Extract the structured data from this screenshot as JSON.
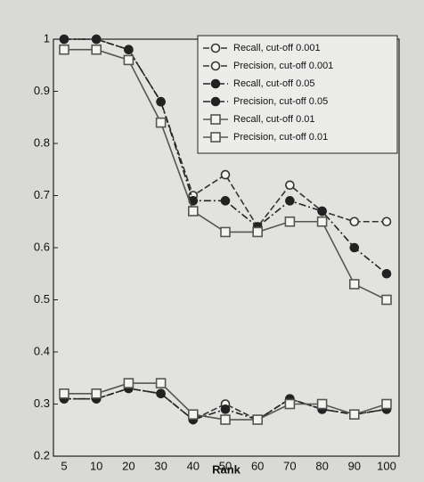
{
  "chart_data": {
    "type": "line",
    "x_label": "Rank",
    "categories": [
      "5",
      "10",
      "20",
      "30",
      "40",
      "50",
      "60",
      "70",
      "80",
      "90",
      "100"
    ],
    "ylim": [
      0.2,
      1.0
    ],
    "yticks": [
      0.2,
      0.3,
      0.4,
      0.5,
      0.6,
      0.7,
      0.8,
      0.9,
      1
    ],
    "legend": "upper right",
    "series": [
      {
        "name": "Recall, cut-off 0.001",
        "color": "#333333",
        "marker": "circle-open",
        "dash": "7,3",
        "values": [
          1.0,
          1.0,
          0.98,
          0.88,
          0.7,
          0.74,
          0.64,
          0.72,
          0.67,
          0.65,
          0.65
        ]
      },
      {
        "name": "Precision, cut-off 0.001",
        "color": "#333333",
        "marker": "circle-open",
        "dash": "7,3",
        "values": [
          0.31,
          0.31,
          0.33,
          0.32,
          0.27,
          0.3,
          0.27,
          0.31,
          0.29,
          0.28,
          0.29
        ]
      },
      {
        "name": "Recall, cut-off 0.05",
        "color": "#222222",
        "marker": "circle-filled",
        "dash": "8,3,2,3",
        "values": [
          1.0,
          1.0,
          0.98,
          0.88,
          0.69,
          0.69,
          0.64,
          0.69,
          0.67,
          0.6,
          0.55
        ]
      },
      {
        "name": "Precision, cut-off 0.05",
        "color": "#222222",
        "marker": "circle-filled",
        "dash": "8,3,2,3",
        "values": [
          0.31,
          0.31,
          0.33,
          0.32,
          0.27,
          0.29,
          0.27,
          0.31,
          0.29,
          0.28,
          0.29
        ]
      },
      {
        "name": "Recall, cut-off 0.01",
        "color": "#555555",
        "marker": "square-open",
        "dash": "",
        "values": [
          0.98,
          0.98,
          0.96,
          0.84,
          0.67,
          0.63,
          0.63,
          0.65,
          0.65,
          0.53,
          0.5
        ]
      },
      {
        "name": "Precision, cut-off 0.01",
        "color": "#555555",
        "marker": "square-open",
        "dash": "",
        "values": [
          0.32,
          0.32,
          0.34,
          0.34,
          0.28,
          0.27,
          0.27,
          0.3,
          0.3,
          0.28,
          0.3
        ]
      }
    ]
  }
}
